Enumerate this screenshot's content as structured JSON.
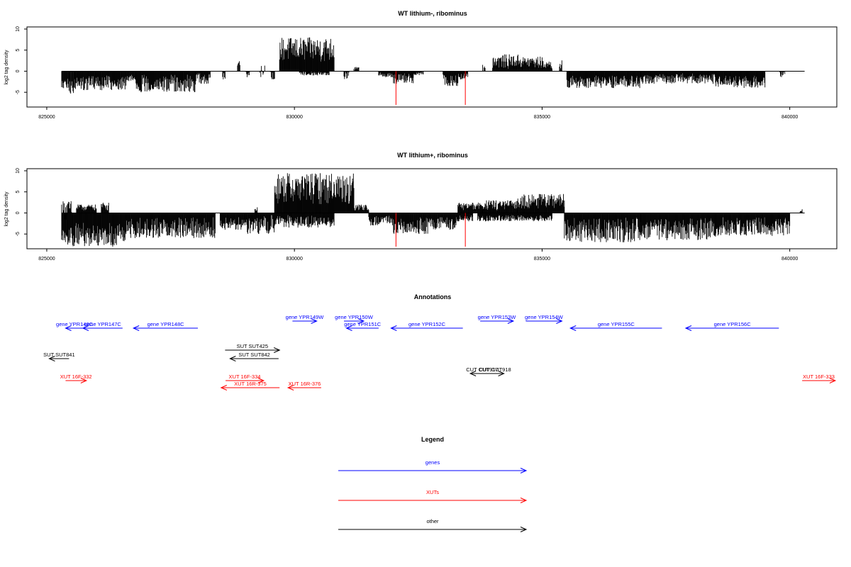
{
  "chart_data": [
    {
      "type": "bar",
      "title": "WT lithium-, ribominus",
      "ylabel": "log2 tag density",
      "xlim": [
        824600,
        840950
      ],
      "ylim": [
        -8.5,
        10.5
      ],
      "xticks": [
        825000,
        830000,
        835000,
        840000
      ],
      "xtick_labels": [
        "825000",
        "830000",
        "835000",
        "840000"
      ],
      "yticks": [
        10,
        5,
        0,
        -5
      ],
      "ytick_labels": [
        "10",
        "5",
        "0",
        "-5"
      ],
      "grid": false,
      "baseline": [
        825300,
        840300
      ],
      "series": [
        {
          "color": "#000000",
          "segments": [
            {
              "x": [
                825300,
                825450
              ],
              "y": [
                -4.5,
                -1.5
              ]
            },
            {
              "x": [
                825450,
                825550
              ],
              "y": [
                -5.5,
                -2
              ]
            },
            {
              "x": [
                825550,
                826600
              ],
              "y": [
                -4.5,
                -1
              ]
            },
            {
              "x": [
                826600,
                826800
              ],
              "y": [
                -2.5,
                -0.5
              ]
            },
            {
              "x": [
                826800,
                828000
              ],
              "y": [
                -5,
                -0.8
              ]
            },
            {
              "x": [
                828000,
                828300
              ],
              "y": [
                -3,
                -0.5
              ]
            },
            {
              "x": [
                828550,
                828600
              ],
              "y": [
                -2.5,
                0
              ]
            },
            {
              "x": [
                828850,
                828900
              ],
              "y": [
                3,
                0
              ]
            },
            {
              "x": [
                829000,
                829100
              ],
              "y": [
                -1.5,
                0
              ]
            },
            {
              "x": [
                829300,
                829400
              ],
              "y": [
                2,
                -2
              ]
            },
            {
              "x": [
                829500,
                829600
              ],
              "y": [
                -2,
                0
              ]
            },
            {
              "x": [
                829700,
                830800
              ],
              "y": [
                8,
                2
              ]
            },
            {
              "x": [
                830100,
                830700
              ],
              "y": [
                -1,
                0
              ]
            },
            {
              "x": [
                831000,
                831100
              ],
              "y": [
                -2,
                0
              ]
            },
            {
              "x": [
                831200,
                831300
              ],
              "y": [
                1,
                0
              ]
            },
            {
              "x": [
                831700,
                832000
              ],
              "y": [
                -1.5,
                -0.3
              ]
            },
            {
              "x": [
                832000,
                832400
              ],
              "y": [
                -3,
                -0.5
              ]
            },
            {
              "x": [
                832400,
                832600
              ],
              "y": [
                -1,
                0
              ]
            },
            {
              "x": [
                833000,
                833300
              ],
              "y": [
                -3.5,
                -0.5
              ]
            },
            {
              "x": [
                833300,
                833500
              ],
              "y": [
                -2,
                -0.5
              ]
            },
            {
              "x": [
                833800,
                833850
              ],
              "y": [
                1.5,
                0
              ]
            },
            {
              "x": [
                834000,
                834600
              ],
              "y": [
                4,
                0.5
              ]
            },
            {
              "x": [
                834600,
                835000
              ],
              "y": [
                3.5,
                0.5
              ]
            },
            {
              "x": [
                835000,
                835200
              ],
              "y": [
                2.5,
                0.5
              ]
            },
            {
              "x": [
                835350,
                835400
              ],
              "y": [
                3,
                0
              ]
            },
            {
              "x": [
                835500,
                837000
              ],
              "y": [
                -4,
                -1
              ]
            },
            {
              "x": [
                837000,
                838500
              ],
              "y": [
                -3,
                -0.5
              ]
            },
            {
              "x": [
                838500,
                839500
              ],
              "y": [
                -4,
                -1
              ]
            },
            {
              "x": [
                839800,
                839900
              ],
              "y": [
                -1.5,
                0
              ]
            }
          ]
        },
        {
          "color": "#ff0000",
          "bars": [
            {
              "x": 832050,
              "y": -8
            },
            {
              "x": 833450,
              "y": -8
            }
          ]
        }
      ]
    },
    {
      "type": "bar",
      "title": "WT lithium+, ribominus",
      "ylabel": "log2 tag density",
      "xlim": [
        824600,
        840950
      ],
      "ylim": [
        -8.5,
        10.5
      ],
      "xticks": [
        825000,
        830000,
        835000,
        840000
      ],
      "xtick_labels": [
        "825000",
        "830000",
        "835000",
        "840000"
      ],
      "yticks": [
        10,
        5,
        0,
        -5
      ],
      "ytick_labels": [
        "10",
        "5",
        "0",
        "-5"
      ],
      "grid": false,
      "baseline": [
        825300,
        840300
      ],
      "series": [
        {
          "color": "#000000",
          "segments": [
            {
              "x": [
                825300,
                825500
              ],
              "y": [
                3,
                -2
              ]
            },
            {
              "x": [
                825300,
                826600
              ],
              "y": [
                -8,
                -2
              ]
            },
            {
              "x": [
                825600,
                826000
              ],
              "y": [
                2,
                0.5
              ]
            },
            {
              "x": [
                826100,
                826250
              ],
              "y": [
                2.5,
                0.5
              ]
            },
            {
              "x": [
                826600,
                828400
              ],
              "y": [
                -6,
                -1
              ]
            },
            {
              "x": [
                828500,
                829000
              ],
              "y": [
                -4,
                -1
              ]
            },
            {
              "x": [
                829000,
                829600
              ],
              "y": [
                -5,
                -0.5
              ]
            },
            {
              "x": [
                829200,
                829250
              ],
              "y": [
                1.5,
                0
              ]
            },
            {
              "x": [
                829600,
                831200
              ],
              "y": [
                9.5,
                2
              ]
            },
            {
              "x": [
                829600,
                830800
              ],
              "y": [
                -3.5,
                -0.5
              ]
            },
            {
              "x": [
                831200,
                831500
              ],
              "y": [
                2,
                0.5
              ]
            },
            {
              "x": [
                831500,
                832000
              ],
              "y": [
                -3,
                -0.5
              ]
            },
            {
              "x": [
                832000,
                832700
              ],
              "y": [
                -5,
                -1
              ]
            },
            {
              "x": [
                832700,
                833300
              ],
              "y": [
                -4,
                -1
              ]
            },
            {
              "x": [
                833300,
                833600
              ],
              "y": [
                -2,
                -0.5
              ]
            },
            {
              "x": [
                833300,
                833800
              ],
              "y": [
                2.5,
                0.5
              ]
            },
            {
              "x": [
                833800,
                834500
              ],
              "y": [
                3,
                0.5
              ]
            },
            {
              "x": [
                834500,
                835450
              ],
              "y": [
                4.5,
                1
              ]
            },
            {
              "x": [
                833700,
                835200
              ],
              "y": [
                -2,
                -0.5
              ]
            },
            {
              "x": [
                835450,
                837000
              ],
              "y": [
                -7,
                -1
              ]
            },
            {
              "x": [
                837000,
                838500
              ],
              "y": [
                -6.5,
                -1
              ]
            },
            {
              "x": [
                838500,
                840000
              ],
              "y": [
                -5.5,
                -1
              ]
            },
            {
              "x": [
                840200,
                840250
              ],
              "y": [
                1,
                0
              ]
            }
          ]
        },
        {
          "color": "#ff0000",
          "bars": [
            {
              "x": 832050,
              "y": -8
            },
            {
              "x": 833450,
              "y": -8
            }
          ]
        }
      ]
    }
  ],
  "annotations": {
    "title": "Annotations",
    "features": [
      {
        "label": "gene YPR146C",
        "cat": "genes",
        "start": 825380,
        "end": 825740,
        "row": 0
      },
      {
        "label": "gene YPR147C",
        "cat": "genes",
        "start": 825730,
        "end": 826530,
        "row": 0
      },
      {
        "label": "gene YPR148C",
        "cat": "genes",
        "start": 826750,
        "end": 828050,
        "row": 0
      },
      {
        "label": "gene YPR149W",
        "cat": "genes",
        "start": 829960,
        "end": 830450,
        "row": -1
      },
      {
        "label": "gene YPR150W",
        "cat": "genes",
        "start": 831000,
        "end": 831400,
        "row": -1
      },
      {
        "label": "gene YPR151C",
        "cat": "genes",
        "start": 831050,
        "end": 831700,
        "row": 0
      },
      {
        "label": "gene YPR152C",
        "cat": "genes",
        "start": 831950,
        "end": 833400,
        "row": 0
      },
      {
        "label": "gene YPR153W",
        "cat": "genes",
        "start": 833750,
        "end": 834420,
        "row": -1
      },
      {
        "label": "gene YPR154W",
        "cat": "genes",
        "start": 834670,
        "end": 835400,
        "row": -1
      },
      {
        "label": "gene YPR155C",
        "cat": "genes",
        "start": 835570,
        "end": 837420,
        "row": 0
      },
      {
        "label": "gene YPR156C",
        "cat": "genes",
        "start": 837900,
        "end": 839780,
        "row": 0
      },
      {
        "label": "SUT SUT425",
        "cat": "other",
        "start": 828600,
        "end": 829700,
        "row": 1
      },
      {
        "label": "SUT SUT842",
        "cat": "other",
        "start": 828700,
        "end": 829680,
        "row": 2
      },
      {
        "label": "SUT SUT841",
        "cat": "other",
        "start": 825050,
        "end": 825450,
        "row": 2
      },
      {
        "label": "CUT CUT917",
        "cat": "other",
        "start": 833550,
        "end": 834030,
        "row": 3
      },
      {
        "label": "CUT CUT918",
        "cat": "other",
        "start": 833870,
        "end": 834230,
        "row": 3
      },
      {
        "label": "XUT 16F-332",
        "cat": "XUTs",
        "start": 825380,
        "end": 825800,
        "row": 4
      },
      {
        "label": "XUT 16F-334",
        "cat": "XUTs",
        "start": 828610,
        "end": 829380,
        "row": 4
      },
      {
        "label": "XUT 16R-375",
        "cat": "XUTs",
        "start": 828520,
        "end": 829700,
        "row": 5
      },
      {
        "label": "XUT 16R-376",
        "cat": "XUTs",
        "start": 829870,
        "end": 830540,
        "row": 5
      },
      {
        "label": "XUT 16F-333",
        "cat": "XUTs",
        "start": 840250,
        "end": 840920,
        "row": 4
      }
    ]
  },
  "legend": {
    "title": "Legend",
    "items": [
      {
        "label": "genes",
        "color": "#0000ff"
      },
      {
        "label": "XUTs",
        "color": "#ff0000"
      },
      {
        "label": "other",
        "color": "#000000"
      }
    ]
  }
}
